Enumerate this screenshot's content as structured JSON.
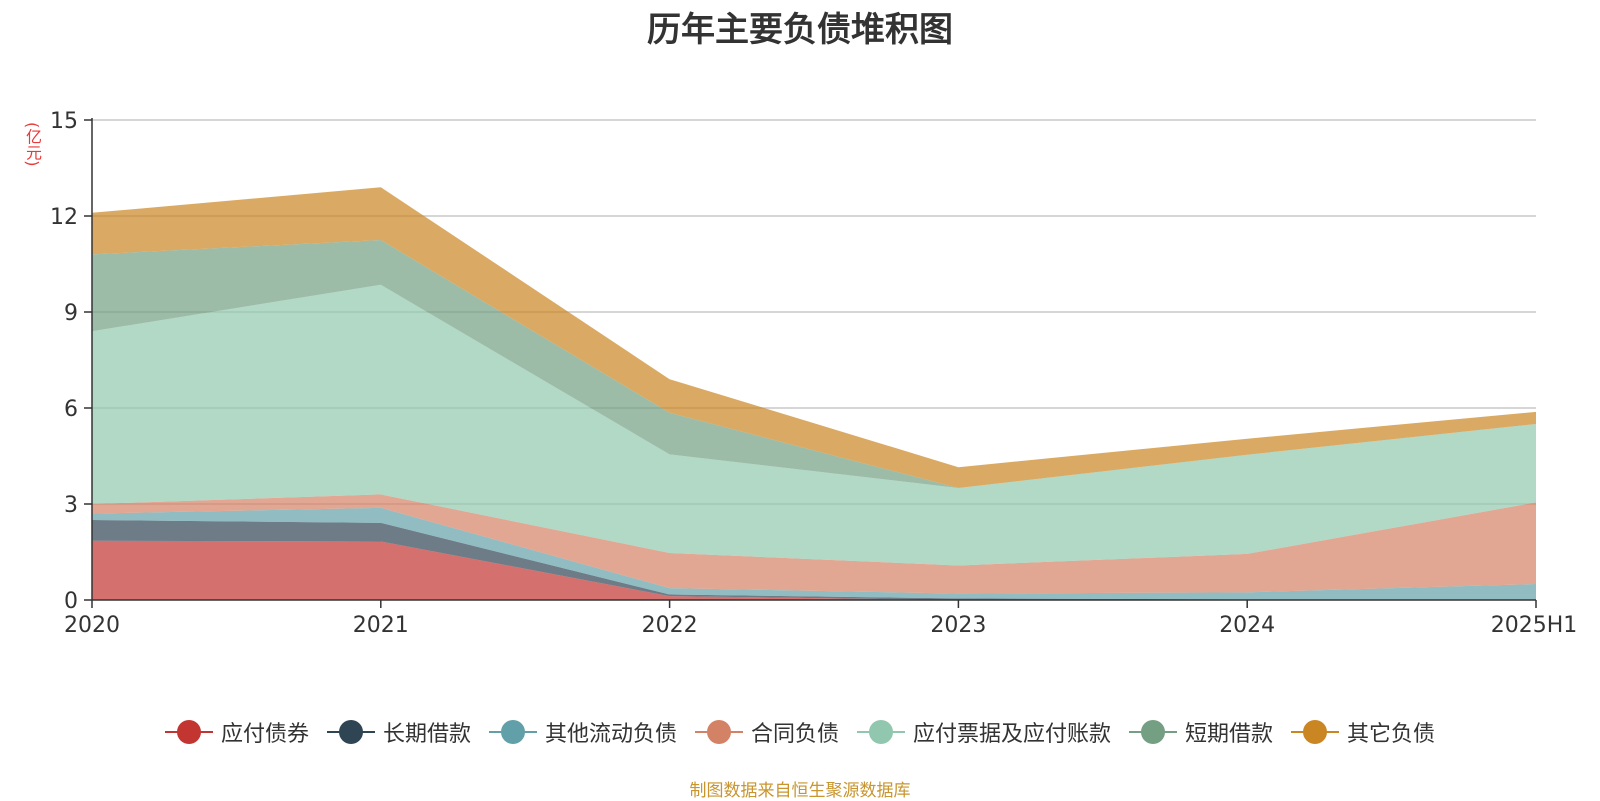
{
  "chart_data": {
    "type": "area",
    "stacked": true,
    "title": "历年主要负债堆积图",
    "unit": "(亿元)",
    "categories": [
      "2020",
      "2021",
      "2022",
      "2023",
      "2024",
      "2025H1"
    ],
    "ylim": [
      0,
      15
    ],
    "yticks": [
      0,
      3,
      6,
      9,
      12,
      15
    ],
    "grid": true,
    "legend_position": "bottom",
    "series": [
      {
        "name": "应付债券",
        "color": "#c23531",
        "values": [
          1.85,
          1.83,
          0.12,
          0.0,
          0.0,
          0.0
        ]
      },
      {
        "name": "长期借款",
        "color": "#2f4554",
        "values": [
          0.65,
          0.58,
          0.05,
          0.05,
          0.02,
          0.02
        ]
      },
      {
        "name": "其他流动负债",
        "color": "#61a0a8",
        "values": [
          0.2,
          0.47,
          0.2,
          0.15,
          0.22,
          0.48
        ]
      },
      {
        "name": "合同负债",
        "color": "#d48265",
        "values": [
          0.3,
          0.42,
          1.1,
          0.88,
          1.2,
          2.55
        ]
      },
      {
        "name": "应付票据及应付账款",
        "color": "#91c7ae",
        "values": [
          5.4,
          6.55,
          3.08,
          2.42,
          3.1,
          2.45
        ]
      },
      {
        "name": "短期借款",
        "color": "#749f83",
        "values": [
          2.4,
          1.4,
          1.3,
          0.0,
          0.0,
          0.0
        ]
      },
      {
        "name": "其它负债",
        "color": "#ca8622",
        "values": [
          1.3,
          1.65,
          1.05,
          0.65,
          0.5,
          0.38
        ]
      }
    ]
  },
  "footer": {
    "source": "制图数据来自恒生聚源数据库"
  }
}
